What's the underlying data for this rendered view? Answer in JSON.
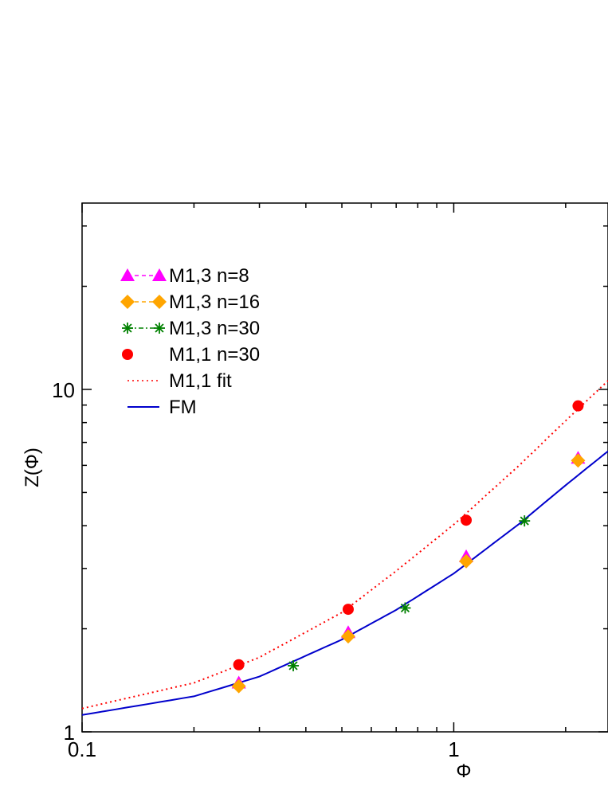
{
  "chart_data": {
    "type": "scatter",
    "title": "",
    "xlabel": "Φ",
    "ylabel": "Z(Φ)",
    "xscale": "log",
    "yscale": "log",
    "xlim": [
      0.1,
      2.6
    ],
    "ylim": [
      1,
      35
    ],
    "x_ticks": [
      {
        "value": 0.1,
        "label": "0.1"
      },
      {
        "value": 1,
        "label": "1"
      }
    ],
    "y_ticks": [
      {
        "value": 1,
        "label": "1"
      },
      {
        "value": 10,
        "label": "10"
      }
    ],
    "grid": false,
    "legend_position": "top-left",
    "series": [
      {
        "name": "M1,3 n=8",
        "marker": "triangle",
        "line": "dashed",
        "color": "#ff00ff",
        "x": [
          0.264,
          0.52,
          1.08,
          2.16
        ],
        "y": [
          1.39,
          1.95,
          3.25,
          6.3
        ]
      },
      {
        "name": "M1,3 n=16",
        "marker": "diamond",
        "line": "dashed",
        "color": "#ffa500",
        "x": [
          0.264,
          0.52,
          1.08,
          2.16
        ],
        "y": [
          1.36,
          1.9,
          3.15,
          6.2
        ]
      },
      {
        "name": "M1,3 n=30",
        "marker": "star",
        "line": "dash-dot",
        "color": "#008000",
        "x": [
          0.37,
          0.74,
          1.55
        ],
        "y": [
          1.56,
          2.3,
          4.13
        ]
      },
      {
        "name": "M1,1 n=30",
        "marker": "circle",
        "line": "none",
        "color": "#ff0000",
        "x": [
          0.264,
          0.52,
          1.08,
          2.16
        ],
        "y": [
          1.57,
          2.28,
          4.15,
          8.95
        ]
      },
      {
        "name": "M1,1 fit",
        "marker": "none",
        "line": "dotted",
        "color": "#ff0000",
        "x": [
          0.1,
          0.2,
          0.3,
          0.5,
          0.7,
          1.0,
          1.5,
          2.0,
          2.6
        ],
        "y": [
          1.17,
          1.39,
          1.65,
          2.23,
          2.95,
          4.03,
          6.0,
          8.1,
          10.6
        ]
      },
      {
        "name": "FM",
        "marker": "none",
        "line": "solid",
        "color": "#0000cc",
        "x": [
          0.1,
          0.2,
          0.3,
          0.5,
          0.7,
          1.0,
          1.5,
          2.0,
          2.6
        ],
        "y": [
          1.12,
          1.27,
          1.45,
          1.86,
          2.27,
          2.9,
          4.05,
          5.25,
          6.6
        ]
      }
    ]
  }
}
